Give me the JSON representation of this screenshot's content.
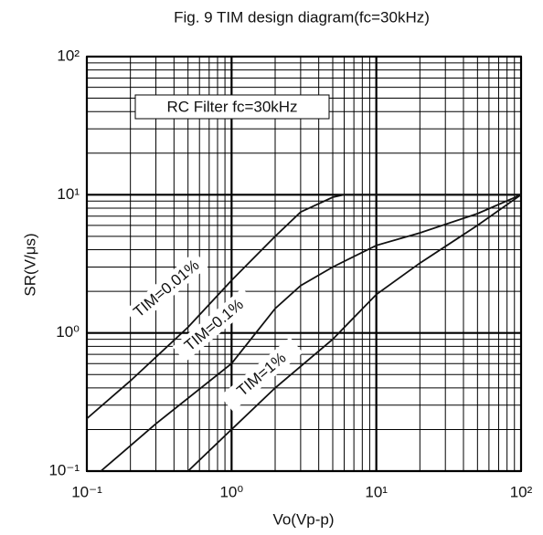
{
  "chart_data": {
    "type": "line",
    "title": "Fig. 9 TIM design diagram(fc=30kHz)",
    "x_label": "Vo(Vp-p)",
    "y_label": "SR(V/μs)",
    "annotation": "RC Filter fc=30kHz",
    "log_x": true,
    "log_y": true,
    "grid": true,
    "xlim": [
      0.1,
      100
    ],
    "ylim": [
      0.1,
      100
    ],
    "xticks": [
      {
        "value": 0.1,
        "label": "10⁻¹"
      },
      {
        "value": 1,
        "label": "10⁰"
      },
      {
        "value": 10,
        "label": "10¹"
      },
      {
        "value": 100,
        "label": "10²"
      }
    ],
    "yticks": [
      {
        "value": 0.1,
        "label": "10⁻¹"
      },
      {
        "value": 1,
        "label": "10⁰"
      },
      {
        "value": 10,
        "label": "10¹"
      },
      {
        "value": 100,
        "label": "10²"
      }
    ],
    "series": [
      {
        "name": "TIM=0.01%",
        "color": "#111111",
        "x": [
          0.1,
          0.2,
          0.5,
          1,
          2,
          3,
          5,
          6,
          100
        ],
        "values": [
          0.24,
          0.45,
          1.1,
          2.4,
          5,
          7.5,
          9.6,
          10,
          10
        ]
      },
      {
        "name": "TIM=0.1%",
        "color": "#111111",
        "x": [
          0.125,
          0.3,
          1,
          2,
          3,
          5,
          10,
          20,
          50,
          100
        ],
        "values": [
          0.1,
          0.22,
          0.6,
          1.5,
          2.2,
          3,
          4.3,
          5.3,
          7.3,
          10
        ]
      },
      {
        "name": "TIM=1%",
        "color": "#111111",
        "x": [
          0.5,
          1,
          2,
          5,
          10,
          20,
          50,
          100
        ],
        "values": [
          0.1,
          0.2,
          0.4,
          0.9,
          1.9,
          3.2,
          6,
          10
        ]
      }
    ]
  }
}
